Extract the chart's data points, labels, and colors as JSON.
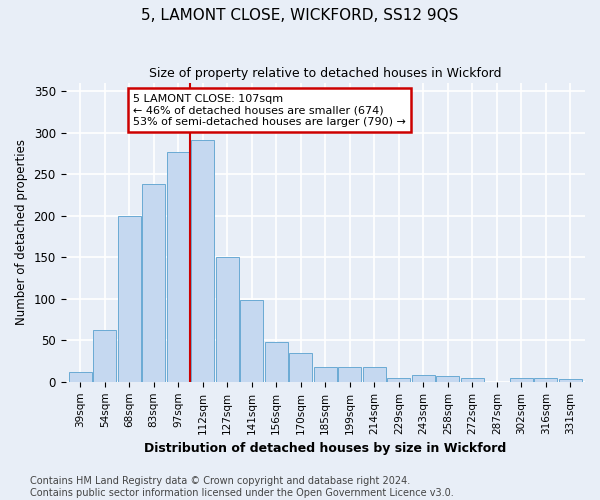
{
  "title": "5, LAMONT CLOSE, WICKFORD, SS12 9QS",
  "subtitle": "Size of property relative to detached houses in Wickford",
  "xlabel": "Distribution of detached houses by size in Wickford",
  "ylabel": "Number of detached properties",
  "categories": [
    "39sqm",
    "54sqm",
    "68sqm",
    "83sqm",
    "97sqm",
    "112sqm",
    "127sqm",
    "141sqm",
    "156sqm",
    "170sqm",
    "185sqm",
    "199sqm",
    "214sqm",
    "229sqm",
    "243sqm",
    "258sqm",
    "272sqm",
    "287sqm",
    "302sqm",
    "316sqm",
    "331sqm"
  ],
  "values": [
    12,
    63,
    200,
    238,
    277,
    291,
    150,
    98,
    48,
    35,
    18,
    18,
    18,
    5,
    8,
    7,
    5,
    0,
    5,
    5,
    3
  ],
  "bar_color": "#c5d8f0",
  "bar_edge_color": "#6aaad4",
  "vline_x": 5.0,
  "annotation_text": "5 LAMONT CLOSE: 107sqm\n← 46% of detached houses are smaller (674)\n53% of semi-detached houses are larger (790) →",
  "annotation_box_color": "#ffffff",
  "annotation_box_edge_color": "#cc0000",
  "vline_color": "#cc0000",
  "ylim": [
    0,
    360
  ],
  "yticks": [
    0,
    50,
    100,
    150,
    200,
    250,
    300,
    350
  ],
  "footer_line1": "Contains HM Land Registry data © Crown copyright and database right 2024.",
  "footer_line2": "Contains public sector information licensed under the Open Government Licence v3.0.",
  "background_color": "#e8eef7",
  "plot_bg_color": "#e8eef7",
  "grid_color": "#ffffff",
  "title_fontsize": 11,
  "subtitle_fontsize": 9,
  "footer_fontsize": 7
}
